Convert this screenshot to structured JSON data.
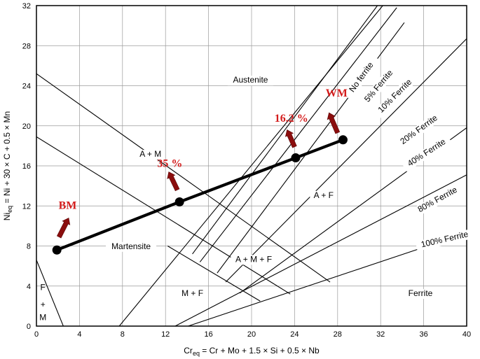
{
  "chart_data": {
    "type": "line",
    "title": "",
    "xlabel": "Cr_eq = Cr + Mo + 1.5 × Si + 0.5 × Nb",
    "ylabel": "Ni_eq = Ni + 30 × C + 0.5 × Mn",
    "xlim": [
      0,
      40
    ],
    "ylim": [
      0,
      32
    ],
    "x_ticks": [
      "0",
      "4",
      "8",
      "12",
      "16",
      "20",
      "24",
      "28",
      "32",
      "36",
      "40"
    ],
    "y_ticks": [
      "0",
      "4",
      "8",
      "12",
      "16",
      "20",
      "24",
      "28",
      "32"
    ],
    "grid": true,
    "boundary_lines": [
      {
        "name": "Austenite / Austenite+Martensite",
        "points": [
          [
            0,
            25.2
          ],
          [
            27.3,
            4.4
          ]
        ]
      },
      {
        "name": "Martensite boundary",
        "points": [
          [
            0,
            18.9
          ],
          [
            23.6,
            3.2
          ]
        ]
      },
      {
        "name": "A+M / A+M+F",
        "points": [
          [
            12.2,
            8
          ],
          [
            20.8,
            2.5
          ]
        ]
      },
      {
        "name": "F+M boundary",
        "points": [
          [
            0,
            6.6
          ],
          [
            2.5,
            0
          ]
        ]
      },
      {
        "name": "M+F boundary",
        "points": [
          [
            7.7,
            0
          ],
          [
            32.2,
            32
          ]
        ]
      },
      {
        "name": "No ferrite",
        "points": [
          [
            14.5,
            7.2
          ],
          [
            31.7,
            32
          ]
        ]
      },
      {
        "name": "5% Ferrite",
        "points": [
          [
            15.2,
            6.4
          ],
          [
            33.5,
            31.8
          ]
        ]
      },
      {
        "name": "10% Ferrite",
        "points": [
          [
            16.8,
            5.3
          ],
          [
            34.2,
            30.3
          ]
        ]
      },
      {
        "name": "20% Ferrite",
        "points": [
          [
            17.6,
            4.4
          ],
          [
            40,
            28.7
          ]
        ]
      },
      {
        "name": "40% Ferrite",
        "points": [
          [
            18.9,
            3.3
          ],
          [
            40,
            19.8
          ]
        ]
      },
      {
        "name": "80% Ferrite",
        "points": [
          [
            12.9,
            0
          ],
          [
            40,
            15.1
          ]
        ]
      },
      {
        "name": "100% Ferrite",
        "points": [
          [
            14.1,
            0
          ],
          [
            40,
            9.3
          ]
        ]
      }
    ],
    "tie_line": {
      "points": [
        {
          "x": 1.9,
          "y": 7.6
        },
        {
          "x": 13.3,
          "y": 12.4
        },
        {
          "x": 24.1,
          "y": 16.8
        },
        {
          "x": 28.5,
          "y": 18.6
        }
      ]
    },
    "region_labels": [
      {
        "text": "Austenite",
        "x": 19.9,
        "y": 24.3
      },
      {
        "text": "A + M",
        "x": 10.6,
        "y": 16.9
      },
      {
        "text": "Martensite",
        "x": 8.8,
        "y": 7.7
      },
      {
        "text": "A + M + F",
        "x": 20.2,
        "y": 6.4
      },
      {
        "text": "A + F",
        "x": 26.7,
        "y": 12.8
      },
      {
        "text": "M + F",
        "x": 14.5,
        "y": 3.0
      },
      {
        "text": "Ferrite",
        "x": 35.7,
        "y": 3.0
      },
      {
        "text": "F",
        "x": 0.6,
        "y": 3.6
      },
      {
        "text": "+",
        "x": 0.6,
        "y": 1.9
      },
      {
        "text": "M",
        "x": 0.6,
        "y": 0.6
      }
    ],
    "ferrite_labels": [
      {
        "text": "No ferrite",
        "x": 30.4,
        "y": 24.7,
        "angle": -54
      },
      {
        "text": "5% Ferrite",
        "x": 32.0,
        "y": 23.8,
        "angle": -50
      },
      {
        "text": "10% Ferrite",
        "x": 33.5,
        "y": 22.8,
        "angle": -45
      },
      {
        "text": "20% Ferrite",
        "x": 35.7,
        "y": 19.4,
        "angle": -36
      },
      {
        "text": "40% Ferrite",
        "x": 36.4,
        "y": 17.1,
        "angle": -33
      },
      {
        "text": "80% Ferrite",
        "x": 37.4,
        "y": 12.4,
        "angle": -29
      },
      {
        "text": "100% Ferrite",
        "x": 38.0,
        "y": 8.4,
        "angle": -13
      }
    ],
    "annotations": [
      {
        "text": "BM",
        "x": 2.9,
        "y": 11.7
      },
      {
        "text": "35 %",
        "x": 12.4,
        "y": 15.9
      },
      {
        "text": "16.2 %",
        "x": 23.7,
        "y": 20.4
      },
      {
        "text": "WM",
        "x": 27.9,
        "y": 22.9
      }
    ],
    "arrows": [
      {
        "x1": 2.1,
        "y1": 8.9,
        "x2": 3.0,
        "y2": 10.8
      },
      {
        "x1": 13.1,
        "y1": 13.6,
        "x2": 12.3,
        "y2": 15.4
      },
      {
        "x1": 24.0,
        "y1": 17.9,
        "x2": 23.3,
        "y2": 19.6
      },
      {
        "x1": 28.0,
        "y1": 19.3,
        "x2": 27.2,
        "y2": 21.3
      }
    ],
    "colors": {
      "annotation": "#d41c1c",
      "arrow": "#8b0d0d",
      "line": "#000000",
      "grid": "#9a9a9a"
    }
  }
}
